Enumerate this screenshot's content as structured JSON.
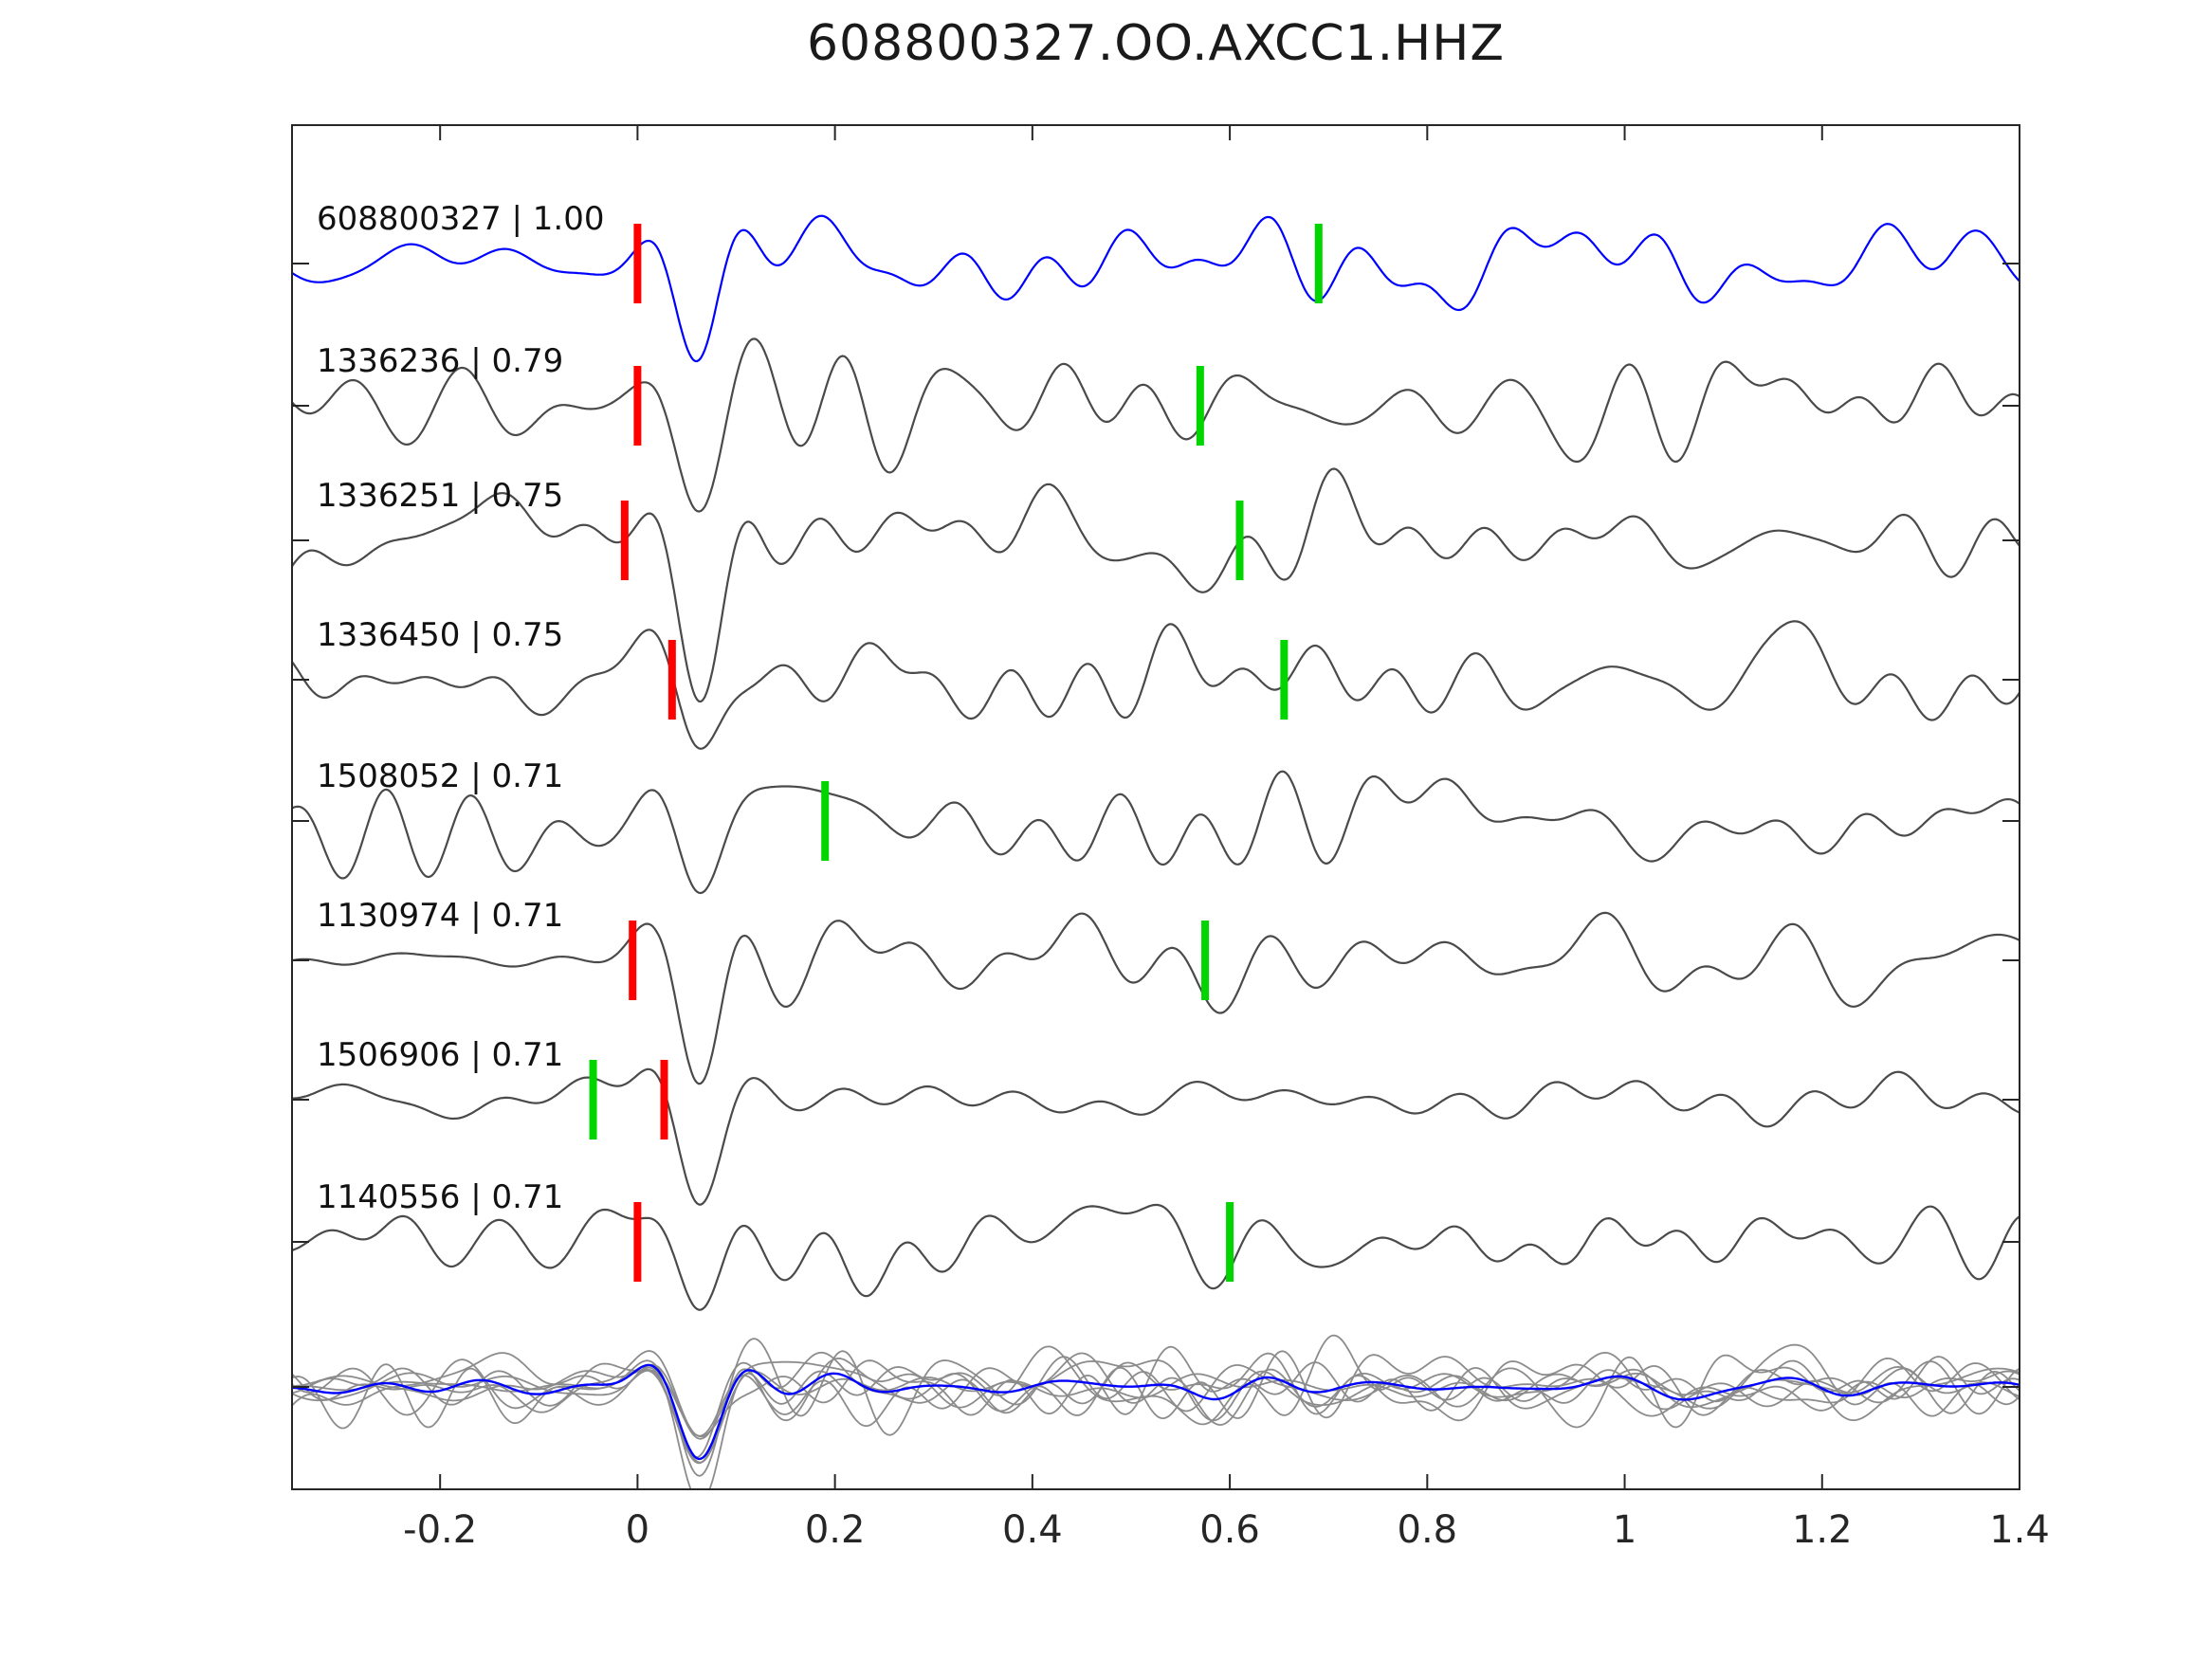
{
  "title": "608800327.OO.AXCC1.HHZ",
  "colors": {
    "pick_red": "#ff0000",
    "pick_green": "#00d500",
    "axis": "#262626",
    "label_text": "#111111",
    "background": "#ffffff"
  },
  "chart_data": {
    "type": "line",
    "title": "608800327.OO.AXCC1.HHZ",
    "xlabel": "",
    "ylabel": "",
    "x_range": [
      -0.35,
      1.4
    ],
    "x_tick_labels": [
      "-0.2",
      "0",
      "0.2",
      "0.4",
      "0.6",
      "0.8",
      "1",
      "1.2",
      "1.4"
    ],
    "x_tick_values": [
      -0.2,
      0,
      0.2,
      0.4,
      0.6,
      0.8,
      1.0,
      1.2,
      1.4
    ],
    "grid": false,
    "legend": "none",
    "description": "Template waveform (blue, top) with correlated detection waveforms (gray), red pick and green pick markers per trace, and an overlay stack of all traces with blue mean at bottom.",
    "traces": [
      {
        "label": "608800327 | 1.00",
        "event_id": "608800327",
        "correlation": 1.0,
        "color": "#0000ff",
        "red_pick": 0.0,
        "green_pick": 0.69,
        "seed": 3,
        "pre_amp": 0.4,
        "post_amp": 0.85
      },
      {
        "label": "1336236 | 0.79",
        "event_id": "1336236",
        "correlation": 0.79,
        "color": "#4a4a4a",
        "red_pick": 0.0,
        "green_pick": 0.57,
        "seed": 7,
        "pre_amp": 0.6,
        "post_amp": 1.0
      },
      {
        "label": "1336251 | 0.75",
        "event_id": "1336251",
        "correlation": 0.75,
        "color": "#4a4a4a",
        "red_pick": -0.013,
        "green_pick": 0.61,
        "seed": 12,
        "pre_amp": 0.7,
        "post_amp": 1.0
      },
      {
        "label": "1336450 | 0.75",
        "event_id": "1336450",
        "correlation": 0.75,
        "color": "#4a4a4a",
        "red_pick": 0.035,
        "green_pick": 0.655,
        "seed": 21,
        "pre_amp": 0.7,
        "post_amp": 0.9
      },
      {
        "label": "1508052 | 0.71",
        "event_id": "1508052",
        "correlation": 0.71,
        "color": "#4a4a4a",
        "red_pick": null,
        "green_pick": 0.19,
        "seed": 31,
        "pre_amp": 1.1,
        "post_amp": 0.85
      },
      {
        "label": "1130974 | 0.71",
        "event_id": "1130974",
        "correlation": 0.71,
        "color": "#4a4a4a",
        "red_pick": -0.005,
        "green_pick": 0.575,
        "seed": 41,
        "pre_amp": 0.15,
        "post_amp": 1.0
      },
      {
        "label": "1506906 | 0.71",
        "event_id": "1506906",
        "correlation": 0.71,
        "color": "#4a4a4a",
        "red_pick": 0.027,
        "green_pick": -0.045,
        "seed": 55,
        "pre_amp": 0.35,
        "post_amp": 0.3
      },
      {
        "label": "1140556 | 0.71",
        "event_id": "1140556",
        "correlation": 0.71,
        "color": "#4a4a4a",
        "red_pick": 0.0,
        "green_pick": 0.6,
        "seed": 63,
        "pre_amp": 0.6,
        "post_amp": 0.9
      }
    ],
    "stack": {
      "trace_color": "#8c8c8c",
      "mean_color": "#0000ff"
    }
  }
}
